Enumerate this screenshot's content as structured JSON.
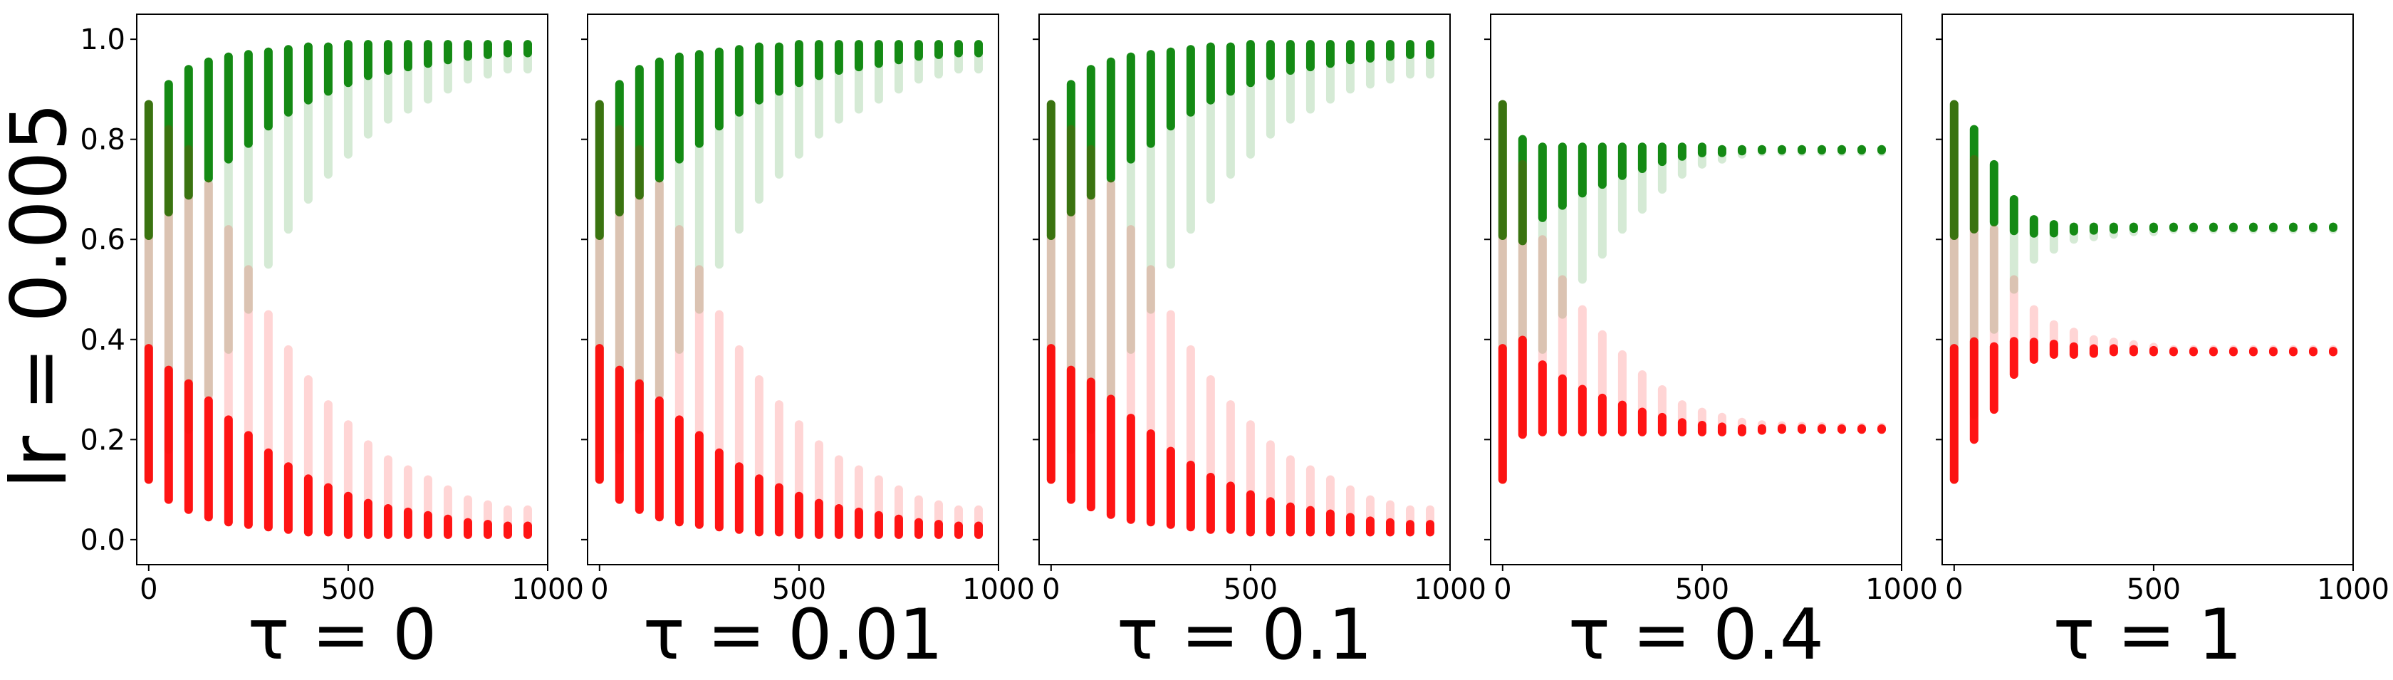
{
  "figure": {
    "ylabel": "lr = 0.005",
    "background": "#ffffff",
    "marker_colors": {
      "upper": "#008000",
      "lower": "#ff0000"
    }
  },
  "chart_data": [
    {
      "type": "scatter",
      "xlabel": "τ = 0",
      "xlim": [
        -30,
        1000
      ],
      "ylim": [
        -0.05,
        1.05
      ],
      "xticks": [
        0,
        500,
        1000
      ],
      "yticks": [
        0.0,
        0.2,
        0.4,
        0.6,
        0.8,
        1.0
      ],
      "series": [
        {
          "x": [
            0,
            50,
            100,
            150,
            200,
            250,
            300,
            350,
            400,
            450,
            500,
            550,
            600,
            650,
            700,
            750,
            800,
            850,
            900,
            950
          ],
          "y_max": [
            0.87,
            0.91,
            0.94,
            0.955,
            0.965,
            0.97,
            0.975,
            0.98,
            0.985,
            0.985,
            0.99,
            0.99,
            0.99,
            0.99,
            0.99,
            0.99,
            0.99,
            0.99,
            0.99,
            0.99
          ],
          "y_min": [
            0.12,
            0.18,
            0.22,
            0.29,
            0.38,
            0.46,
            0.55,
            0.62,
            0.68,
            0.73,
            0.77,
            0.81,
            0.84,
            0.86,
            0.88,
            0.9,
            0.92,
            0.93,
            0.94,
            0.94
          ]
        },
        {
          "x": [
            0,
            50,
            100,
            150,
            200,
            250,
            300,
            350,
            400,
            450,
            500,
            550,
            600,
            650,
            700,
            750,
            800,
            850,
            900,
            950
          ],
          "y_max": [
            0.87,
            0.82,
            0.78,
            0.71,
            0.62,
            0.54,
            0.45,
            0.38,
            0.32,
            0.27,
            0.23,
            0.19,
            0.16,
            0.14,
            0.12,
            0.1,
            0.08,
            0.07,
            0.06,
            0.06
          ],
          "y_min": [
            0.12,
            0.08,
            0.06,
            0.045,
            0.035,
            0.03,
            0.025,
            0.02,
            0.015,
            0.015,
            0.01,
            0.01,
            0.01,
            0.01,
            0.01,
            0.01,
            0.01,
            0.01,
            0.01,
            0.01
          ]
        }
      ]
    },
    {
      "type": "scatter",
      "xlabel": "τ = 0.01",
      "xlim": [
        -30,
        1000
      ],
      "ylim": [
        -0.05,
        1.05
      ],
      "xticks": [
        0,
        500,
        1000
      ],
      "yticks": [
        0.0,
        0.2,
        0.4,
        0.6,
        0.8,
        1.0
      ],
      "series": [
        {
          "x": [
            0,
            50,
            100,
            150,
            200,
            250,
            300,
            350,
            400,
            450,
            500,
            550,
            600,
            650,
            700,
            750,
            800,
            850,
            900,
            950
          ],
          "y_max": [
            0.87,
            0.91,
            0.94,
            0.955,
            0.965,
            0.97,
            0.975,
            0.98,
            0.985,
            0.985,
            0.99,
            0.99,
            0.99,
            0.99,
            0.99,
            0.99,
            0.99,
            0.99,
            0.99,
            0.99
          ],
          "y_min": [
            0.12,
            0.18,
            0.22,
            0.29,
            0.38,
            0.46,
            0.55,
            0.62,
            0.68,
            0.73,
            0.77,
            0.81,
            0.84,
            0.86,
            0.88,
            0.9,
            0.92,
            0.93,
            0.94,
            0.94
          ]
        },
        {
          "x": [
            0,
            50,
            100,
            150,
            200,
            250,
            300,
            350,
            400,
            450,
            500,
            550,
            600,
            650,
            700,
            750,
            800,
            850,
            900,
            950
          ],
          "y_max": [
            0.87,
            0.82,
            0.78,
            0.71,
            0.62,
            0.54,
            0.45,
            0.38,
            0.32,
            0.27,
            0.23,
            0.19,
            0.16,
            0.14,
            0.12,
            0.1,
            0.08,
            0.07,
            0.06,
            0.06
          ],
          "y_min": [
            0.12,
            0.08,
            0.06,
            0.045,
            0.035,
            0.03,
            0.025,
            0.02,
            0.015,
            0.015,
            0.01,
            0.01,
            0.01,
            0.01,
            0.01,
            0.01,
            0.01,
            0.01,
            0.01,
            0.01
          ]
        }
      ]
    },
    {
      "type": "scatter",
      "xlabel": "τ = 0.1",
      "xlim": [
        -30,
        1000
      ],
      "ylim": [
        -0.05,
        1.05
      ],
      "xticks": [
        0,
        500,
        1000
      ],
      "yticks": [
        0.0,
        0.2,
        0.4,
        0.6,
        0.8,
        1.0
      ],
      "series": [
        {
          "x": [
            0,
            50,
            100,
            150,
            200,
            250,
            300,
            350,
            400,
            450,
            500,
            550,
            600,
            650,
            700,
            750,
            800,
            850,
            900,
            950
          ],
          "y_max": [
            0.87,
            0.91,
            0.94,
            0.955,
            0.965,
            0.97,
            0.975,
            0.98,
            0.985,
            0.985,
            0.99,
            0.99,
            0.99,
            0.99,
            0.99,
            0.99,
            0.99,
            0.99,
            0.99,
            0.99
          ],
          "y_min": [
            0.12,
            0.18,
            0.22,
            0.29,
            0.38,
            0.46,
            0.55,
            0.62,
            0.68,
            0.73,
            0.77,
            0.81,
            0.84,
            0.86,
            0.88,
            0.9,
            0.91,
            0.92,
            0.93,
            0.93
          ]
        },
        {
          "x": [
            0,
            50,
            100,
            150,
            200,
            250,
            300,
            350,
            400,
            450,
            500,
            550,
            600,
            650,
            700,
            750,
            800,
            850,
            900,
            950
          ],
          "y_max": [
            0.87,
            0.82,
            0.78,
            0.71,
            0.62,
            0.54,
            0.45,
            0.38,
            0.32,
            0.27,
            0.23,
            0.19,
            0.16,
            0.14,
            0.12,
            0.1,
            0.08,
            0.07,
            0.06,
            0.06
          ],
          "y_min": [
            0.12,
            0.08,
            0.065,
            0.05,
            0.04,
            0.035,
            0.03,
            0.025,
            0.02,
            0.02,
            0.015,
            0.015,
            0.015,
            0.015,
            0.015,
            0.015,
            0.015,
            0.015,
            0.015,
            0.015
          ]
        }
      ]
    },
    {
      "type": "scatter",
      "xlabel": "τ = 0.4",
      "xlim": [
        -30,
        1000
      ],
      "ylim": [
        -0.05,
        1.05
      ],
      "xticks": [
        0,
        500,
        1000
      ],
      "yticks": [
        0.0,
        0.2,
        0.4,
        0.6,
        0.8,
        1.0
      ],
      "series": [
        {
          "x": [
            0,
            50,
            100,
            150,
            200,
            250,
            300,
            350,
            400,
            450,
            500,
            550,
            600,
            650,
            700,
            750,
            800,
            850,
            900,
            950
          ],
          "y_max": [
            0.87,
            0.8,
            0.785,
            0.785,
            0.785,
            0.785,
            0.785,
            0.785,
            0.785,
            0.785,
            0.785,
            0.78,
            0.78,
            0.78,
            0.78,
            0.78,
            0.78,
            0.78,
            0.78,
            0.78
          ],
          "y_min": [
            0.12,
            0.22,
            0.38,
            0.45,
            0.52,
            0.57,
            0.62,
            0.66,
            0.7,
            0.73,
            0.75,
            0.76,
            0.77,
            0.775,
            0.775,
            0.775,
            0.775,
            0.775,
            0.775,
            0.775
          ]
        },
        {
          "x": [
            0,
            50,
            100,
            150,
            200,
            250,
            300,
            350,
            400,
            450,
            500,
            550,
            600,
            650,
            700,
            750,
            800,
            850,
            900,
            950
          ],
          "y_max": [
            0.87,
            0.75,
            0.6,
            0.52,
            0.46,
            0.41,
            0.37,
            0.33,
            0.3,
            0.27,
            0.255,
            0.245,
            0.235,
            0.23,
            0.228,
            0.227,
            0.226,
            0.225,
            0.225,
            0.225
          ],
          "y_min": [
            0.12,
            0.21,
            0.215,
            0.215,
            0.215,
            0.215,
            0.215,
            0.215,
            0.215,
            0.215,
            0.215,
            0.215,
            0.215,
            0.218,
            0.22,
            0.22,
            0.22,
            0.22,
            0.22,
            0.22
          ]
        }
      ]
    },
    {
      "type": "scatter",
      "xlabel": "τ = 1",
      "xlim": [
        -30,
        1000
      ],
      "ylim": [
        -0.05,
        1.05
      ],
      "xticks": [
        0,
        500,
        1000
      ],
      "yticks": [
        0.0,
        0.2,
        0.4,
        0.6,
        0.8,
        1.0
      ],
      "series": [
        {
          "x": [
            0,
            50,
            100,
            150,
            200,
            250,
            300,
            350,
            400,
            450,
            500,
            550,
            600,
            650,
            700,
            750,
            800,
            850,
            900,
            950
          ],
          "y_max": [
            0.87,
            0.82,
            0.75,
            0.68,
            0.64,
            0.63,
            0.625,
            0.625,
            0.625,
            0.625,
            0.625,
            0.625,
            0.625,
            0.625,
            0.625,
            0.625,
            0.625,
            0.625,
            0.625,
            0.625
          ],
          "y_min": [
            0.12,
            0.25,
            0.42,
            0.5,
            0.56,
            0.58,
            0.6,
            0.605,
            0.61,
            0.615,
            0.615,
            0.62,
            0.62,
            0.62,
            0.62,
            0.62,
            0.62,
            0.62,
            0.62,
            0.62
          ]
        },
        {
          "x": [
            0,
            50,
            100,
            150,
            200,
            250,
            300,
            350,
            400,
            450,
            500,
            550,
            600,
            650,
            700,
            750,
            800,
            850,
            900,
            950
          ],
          "y_max": [
            0.87,
            0.76,
            0.62,
            0.52,
            0.46,
            0.43,
            0.415,
            0.4,
            0.395,
            0.39,
            0.385,
            0.38,
            0.38,
            0.38,
            0.38,
            0.38,
            0.38,
            0.38,
            0.38,
            0.38
          ],
          "y_min": [
            0.12,
            0.2,
            0.26,
            0.33,
            0.36,
            0.37,
            0.37,
            0.372,
            0.375,
            0.375,
            0.375,
            0.375,
            0.375,
            0.375,
            0.375,
            0.375,
            0.375,
            0.375,
            0.375,
            0.375
          ]
        }
      ]
    }
  ]
}
